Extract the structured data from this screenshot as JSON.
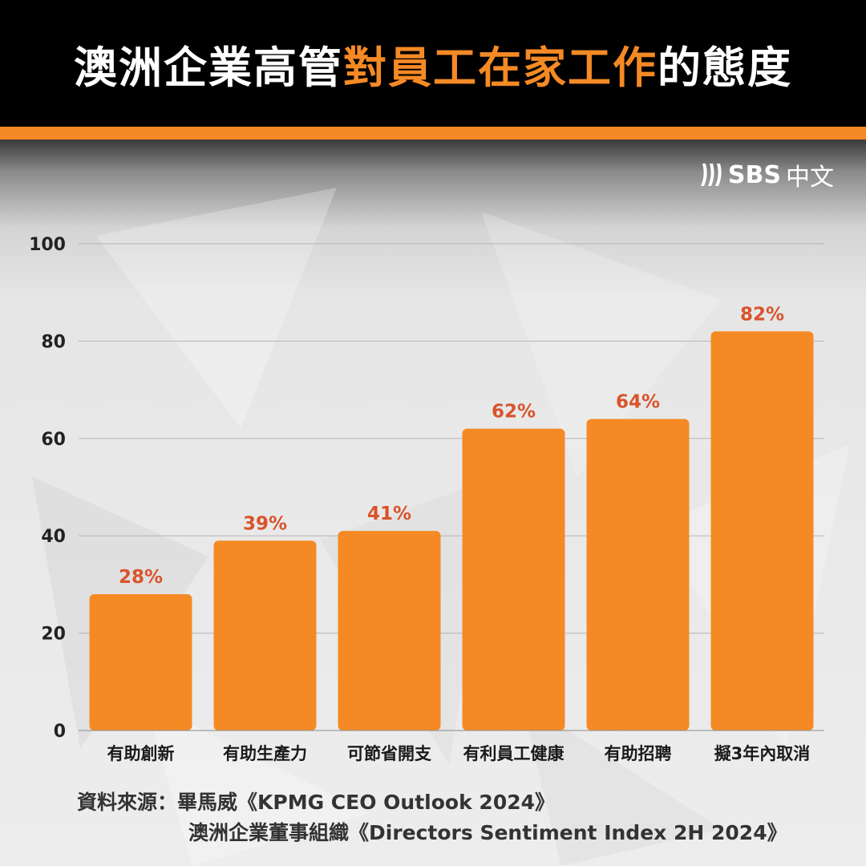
{
  "title": {
    "part1": "澳洲企業高管",
    "part2": "對員工在家工作",
    "part3": "的態度"
  },
  "logo": {
    "brand": "SBS",
    "cn": "中文",
    "icon": "sbs-waves-icon"
  },
  "colors": {
    "accent": "#f58a25",
    "label": "#d9532b",
    "header_bg": "#000000"
  },
  "chart_data": {
    "type": "bar",
    "categories": [
      "有助創新",
      "有助生產力",
      "可節省開支",
      "有利員工健康",
      "有助招聘",
      "擬3年內取消"
    ],
    "values": [
      28,
      39,
      41,
      62,
      64,
      82
    ],
    "value_labels": [
      "28%",
      "39%",
      "41%",
      "62%",
      "64%",
      "82%"
    ],
    "ylim": [
      0,
      100
    ],
    "yticks": [
      0,
      20,
      40,
      60,
      80,
      100
    ],
    "grid": true
  },
  "source": {
    "line1": "資料來源：畢馬威《KPMG CEO Outlook 2024》",
    "line2": "澳洲企業董事組織《Directors Sentiment Index 2H 2024》"
  }
}
